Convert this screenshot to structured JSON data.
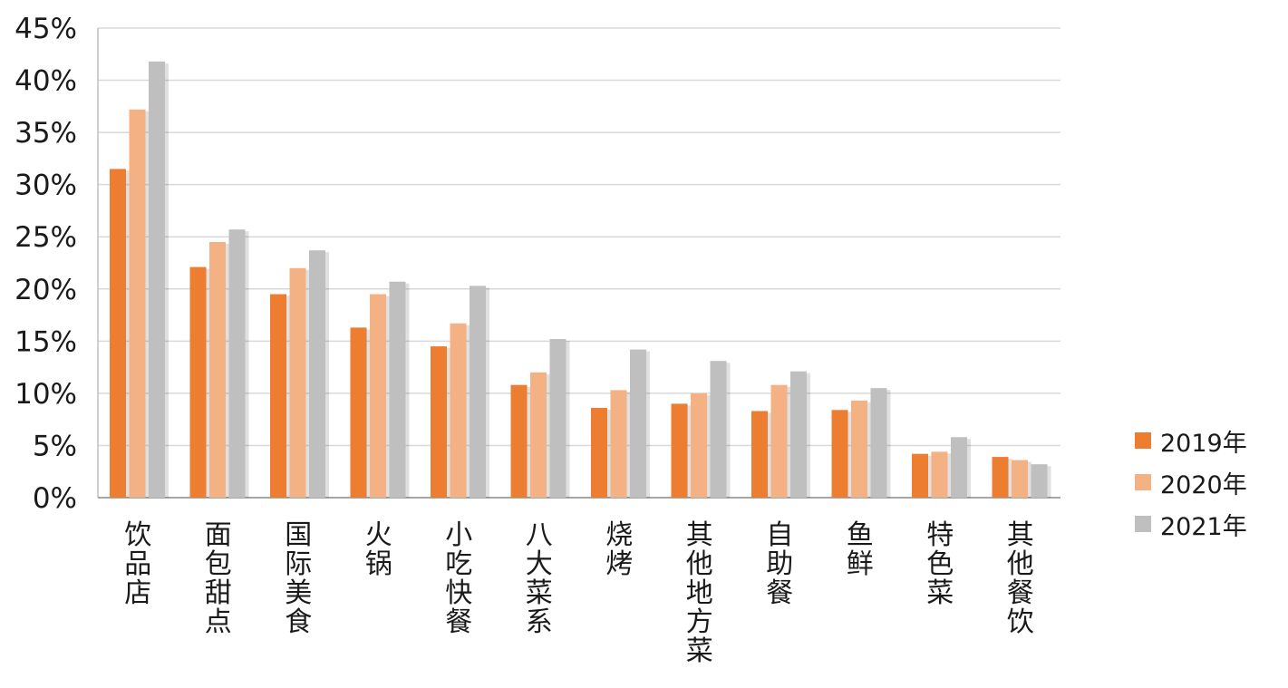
{
  "chart_data": {
    "type": "bar",
    "categories": [
      "饮品店",
      "面包甜点",
      "国际美食",
      "火锅",
      "小吃快餐",
      "八大菜系",
      "烧烤",
      "其他地方菜",
      "自助餐",
      "鱼鲜",
      "特色菜",
      "其他餐饮"
    ],
    "series": [
      {
        "name": "2019年",
        "color": "#ED7D31",
        "values": [
          31.5,
          22.1,
          19.5,
          16.3,
          14.5,
          10.8,
          8.6,
          9.0,
          8.3,
          8.4,
          4.2,
          3.9
        ]
      },
      {
        "name": "2020年",
        "color": "#F4B183",
        "values": [
          37.2,
          24.5,
          22.0,
          19.5,
          16.7,
          12.0,
          10.3,
          10.0,
          10.8,
          9.3,
          4.4,
          3.6
        ]
      },
      {
        "name": "2021年",
        "color": "#BFBFBF",
        "values": [
          41.8,
          25.7,
          23.7,
          20.7,
          20.3,
          15.2,
          14.2,
          13.1,
          12.1,
          10.5,
          5.8,
          3.2
        ]
      }
    ],
    "ylim": [
      0,
      45
    ],
    "yticks": [
      "0%",
      "5%",
      "10%",
      "15%",
      "20%",
      "25%",
      "30%",
      "35%",
      "40%",
      "45%"
    ],
    "ytick_values": [
      0,
      5,
      10,
      15,
      20,
      25,
      30,
      35,
      40,
      45
    ],
    "grid": true,
    "legend_position": "right",
    "title": "",
    "xlabel": "",
    "ylabel": ""
  }
}
